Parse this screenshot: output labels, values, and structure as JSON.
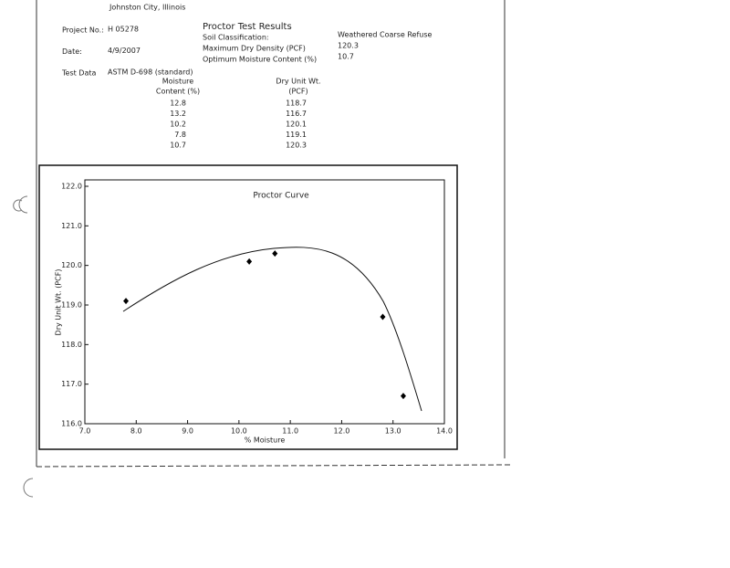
{
  "header": {
    "location": "Johnston City, Illinois",
    "fields": [
      {
        "label": "Project No.:",
        "value": "H 05278"
      },
      {
        "label": "Date:",
        "value": "4/9/2007"
      },
      {
        "label": "Test Data",
        "value": "ASTM D-698 (standard)"
      }
    ]
  },
  "results": {
    "title": "Proctor Test Results",
    "rows": [
      {
        "label": "Soil Classification:",
        "value": "Weathered Coarse Refuse"
      },
      {
        "label": "Maximum Dry Density (PCF)",
        "value": "120.3"
      },
      {
        "label": "Optimum Moisture Content (%)",
        "value": "10.7"
      }
    ]
  },
  "table": {
    "headers": [
      [
        "Moisture",
        "Content (%)"
      ],
      [
        "Dry Unit Wt.",
        "(PCF)"
      ]
    ],
    "rows": [
      [
        12.8,
        118.7
      ],
      [
        13.2,
        116.7
      ],
      [
        10.2,
        120.1
      ],
      [
        7.8,
        119.1
      ],
      [
        10.7,
        120.3
      ]
    ]
  },
  "chart_data": {
    "type": "scatter",
    "title": "Proctor Curve",
    "x_label": "% Moisture",
    "y_label": "Dry Unit Wt. (PCF)",
    "xlim": [
      7,
      14
    ],
    "ylim": [
      116,
      122
    ],
    "xticks": [
      {
        "value": 7,
        "label": "7.0"
      },
      {
        "value": 8,
        "label": "8.0"
      },
      {
        "value": 9,
        "label": "9.0"
      },
      {
        "value": 10,
        "label": "10.0"
      },
      {
        "value": 11,
        "label": "11.0"
      },
      {
        "value": 12,
        "label": "12.0"
      },
      {
        "value": 13,
        "label": "13.0"
      },
      {
        "value": 14,
        "label": "14.0"
      }
    ],
    "yticks": [
      {
        "value": 116,
        "label": "116.0"
      },
      {
        "value": 117,
        "label": "117.0"
      },
      {
        "value": 118,
        "label": "118.0"
      },
      {
        "value": 119,
        "label": "119.0"
      },
      {
        "value": 120,
        "label": "120.0"
      },
      {
        "value": 121,
        "label": "121.0"
      },
      {
        "value": 122,
        "label": "122.0"
      }
    ],
    "color": "#000000"
  }
}
